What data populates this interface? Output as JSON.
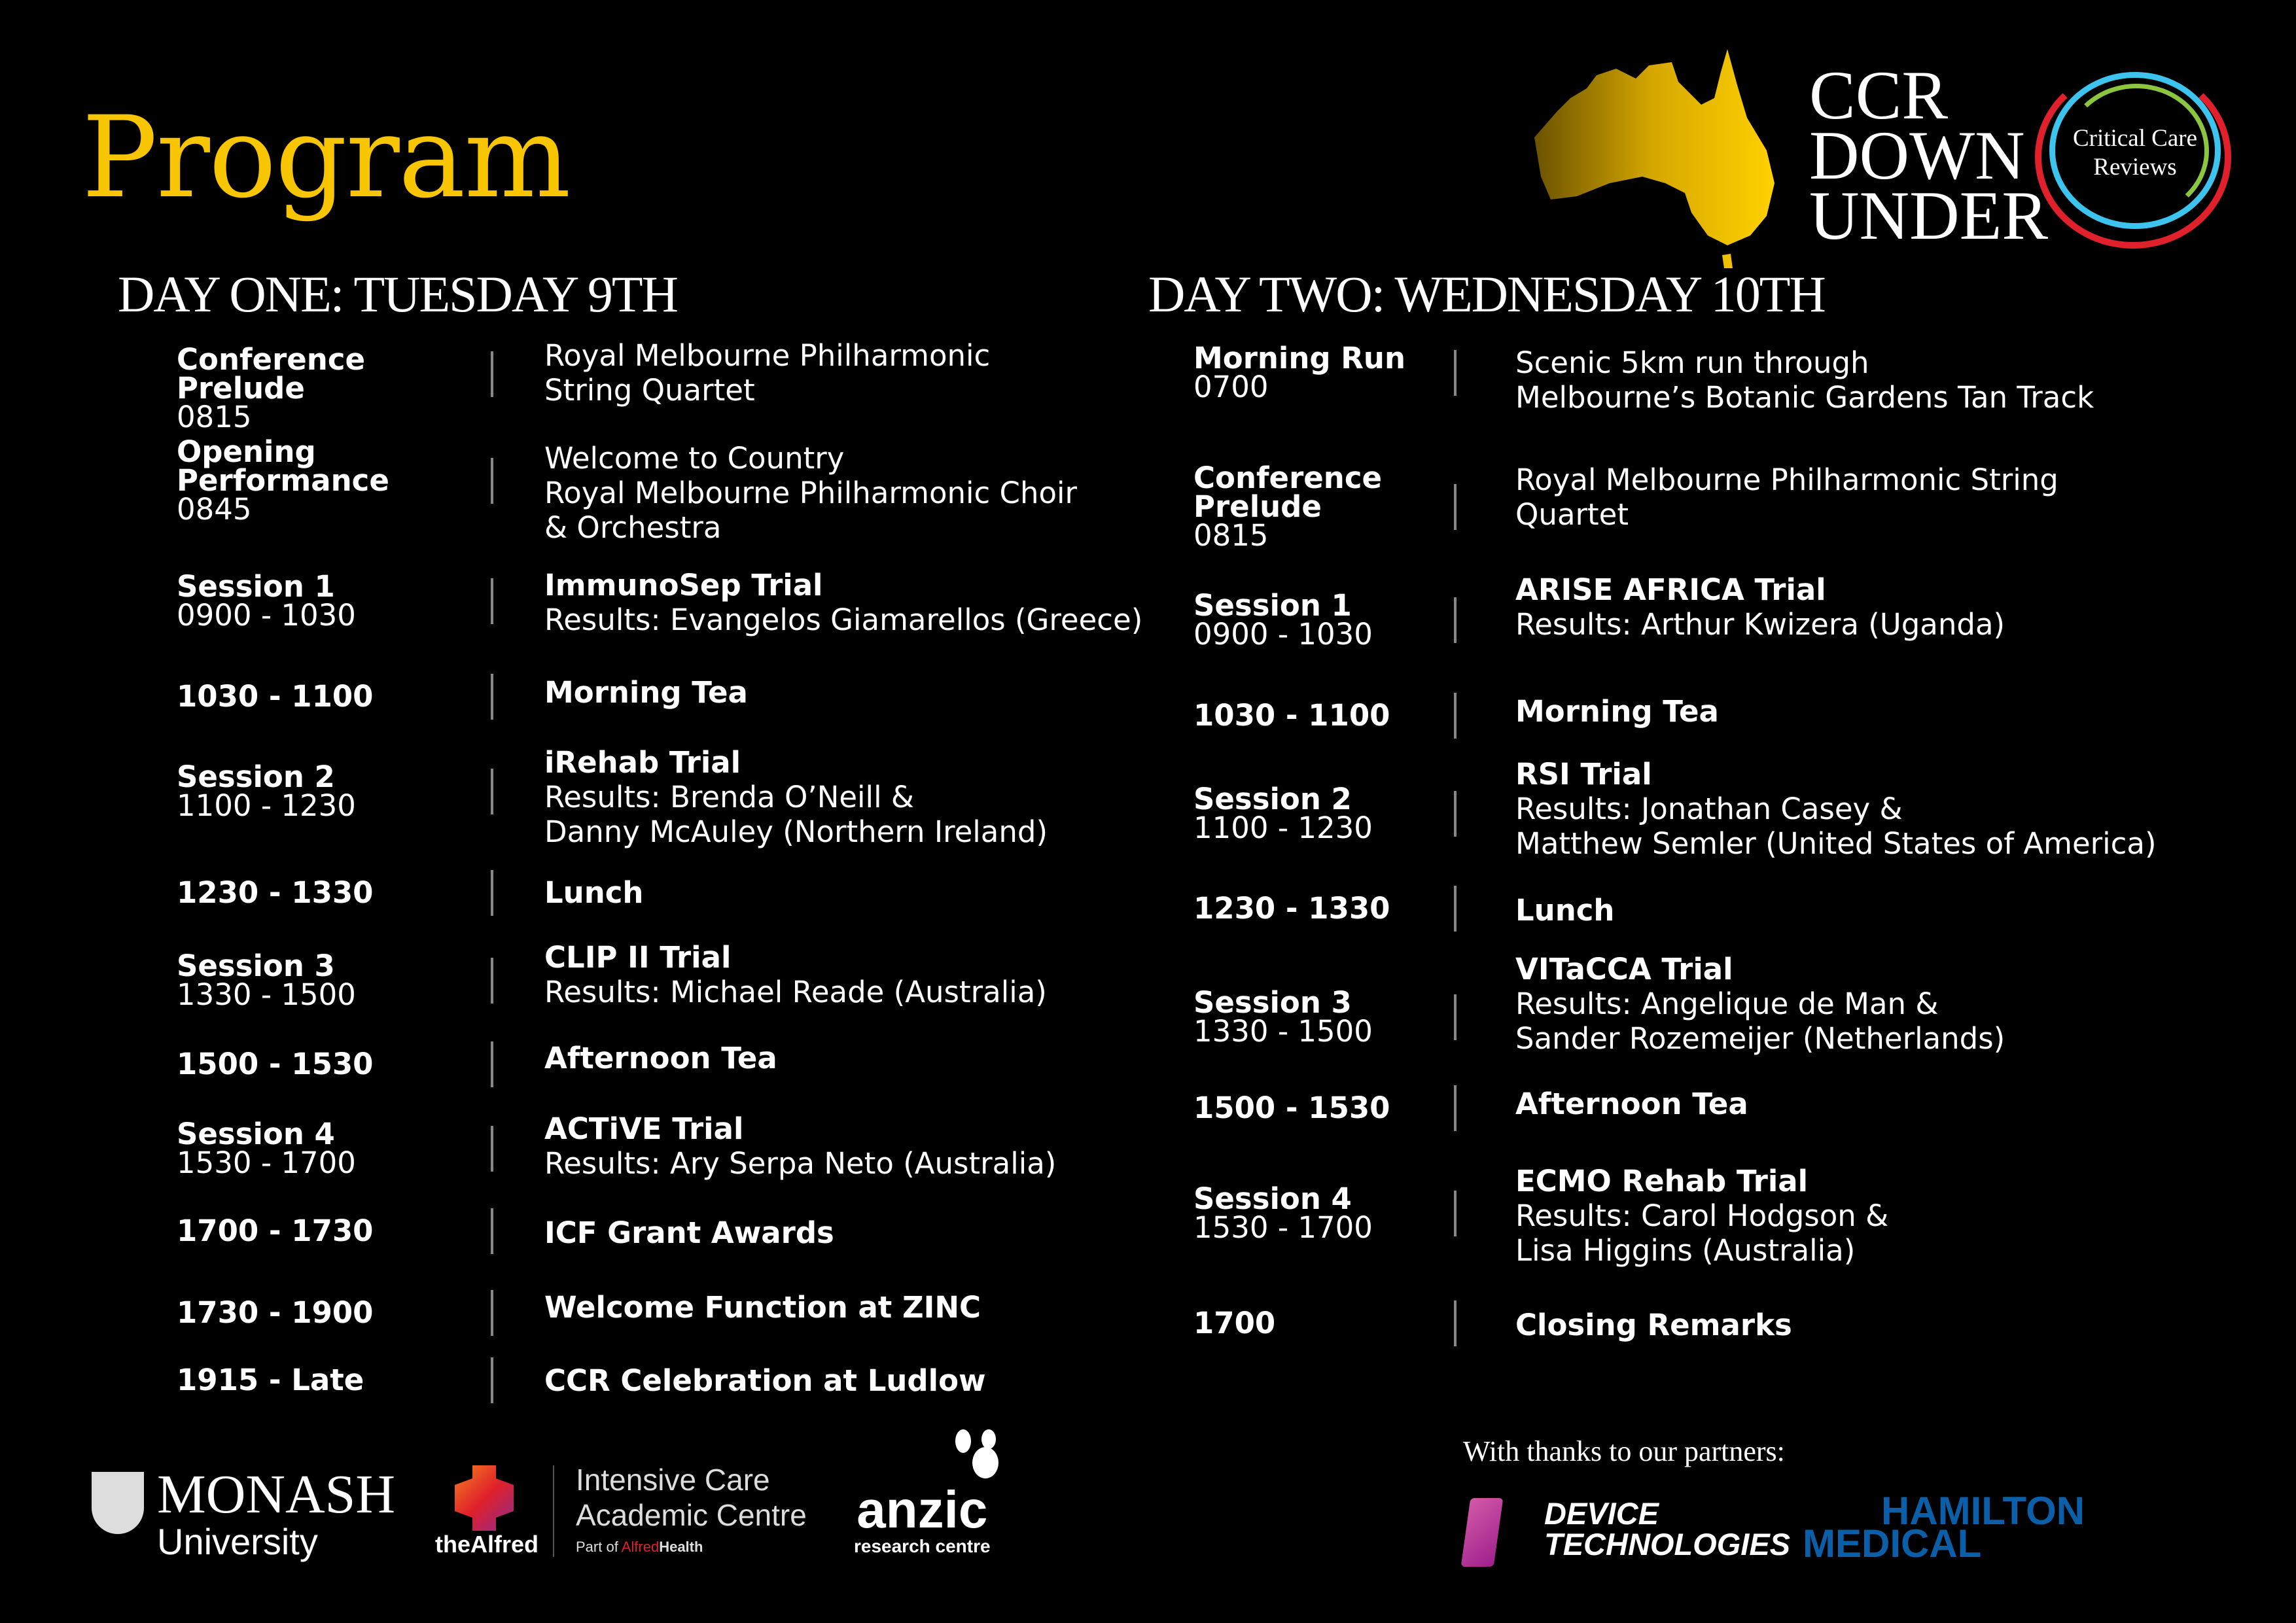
{
  "title": "Program",
  "branding": {
    "ccr": [
      "CCR",
      "DOWN",
      "UNDER"
    ],
    "ccr_reviews": [
      "Critical Care",
      "Reviews"
    ],
    "map_color": "#f5c400",
    "ring_colors": [
      "#e0202a",
      "#3cc3ee",
      "#8cc63f"
    ]
  },
  "day_one": {
    "heading": "DAY ONE: TUESDAY 9TH",
    "rows": [
      {
        "title": "Conference Prelude",
        "time": "0815",
        "heading": "",
        "lines": [
          "Royal Melbourne Philharmonic",
          "String Quartet"
        ]
      },
      {
        "title": "Opening Performance",
        "time": "0845",
        "heading": "",
        "lines": [
          "Welcome to Country",
          "Royal Melbourne Philharmonic Choir",
          "& Orchestra"
        ]
      },
      {
        "title": "Session 1",
        "time": "0900 - 1030",
        "heading": "ImmunoSep Trial",
        "lines": [
          "Results: Evangelos Giamarellos (Greece)"
        ]
      },
      {
        "title": "",
        "time": "1030 - 1100",
        "heading": "Morning Tea",
        "lines": []
      },
      {
        "title": "Session 2",
        "time": "1100 - 1230",
        "heading": "iRehab Trial",
        "lines": [
          "Results: Brenda O’Neill &",
          "Danny McAuley (Northern Ireland)"
        ]
      },
      {
        "title": "",
        "time": "1230 - 1330",
        "heading": "Lunch",
        "lines": []
      },
      {
        "title": "Session 3",
        "time": "1330 - 1500",
        "heading": "CLIP II Trial",
        "lines": [
          "Results: Michael Reade (Australia)"
        ]
      },
      {
        "title": "",
        "time": "1500 - 1530",
        "heading": "Afternoon Tea",
        "lines": []
      },
      {
        "title": "Session 4",
        "time": "1530 - 1700",
        "heading": "ACTiVE Trial",
        "lines": [
          "Results: Ary Serpa Neto (Australia)"
        ]
      },
      {
        "title": "",
        "time": "1700 - 1730",
        "heading": "ICF Grant Awards",
        "lines": []
      },
      {
        "title": "",
        "time": "1730 - 1900",
        "heading": "Welcome Function at ZINC",
        "lines": []
      },
      {
        "title": "",
        "time": "1915 - Late",
        "heading": "CCR Celebration at Ludlow",
        "lines": []
      }
    ]
  },
  "day_two": {
    "heading": "DAY TWO: WEDNESDAY 10TH",
    "rows": [
      {
        "title": "Morning Run",
        "time": "0700",
        "heading": "",
        "lines": [
          "Scenic 5km run through",
          "Melbourne’s Botanic Gardens Tan Track"
        ]
      },
      {
        "title": "Conference Prelude",
        "time": "0815",
        "heading": "",
        "lines": [
          "Royal Melbourne Philharmonic String",
          "Quartet"
        ]
      },
      {
        "title": "Session 1",
        "time": "0900 - 1030",
        "heading": "ARISE AFRICA Trial",
        "lines": [
          "Results: Arthur Kwizera (Uganda)"
        ]
      },
      {
        "title": "",
        "time": "1030 - 1100",
        "heading": "Morning Tea",
        "lines": []
      },
      {
        "title": "Session 2",
        "time": "1100 - 1230",
        "heading": "RSI Trial",
        "lines": [
          "Results: Jonathan Casey &",
          "Matthew Semler (United States of America)"
        ]
      },
      {
        "title": "",
        "time": "1230 - 1330",
        "heading": "Lunch",
        "lines": []
      },
      {
        "title": "Session 3",
        "time": "1330 - 1500",
        "heading": "VITaCCA Trial",
        "lines": [
          "Results: Angelique de Man &",
          "Sander Rozemeijer (Netherlands)"
        ]
      },
      {
        "title": "",
        "time": "1500 - 1530",
        "heading": "Afternoon Tea",
        "lines": []
      },
      {
        "title": "Session 4",
        "time": "1530 - 1700",
        "heading": "ECMO Rehab Trial",
        "lines": [
          "Results: Carol Hodgson &",
          "Lisa Higgins (Australia)"
        ]
      },
      {
        "title": "",
        "time": "1700",
        "heading": "Closing Remarks",
        "lines": []
      }
    ]
  },
  "partners": {
    "thanks": "With thanks to our partners:",
    "device": [
      "DEVICE",
      "TECHNOLOGIES"
    ],
    "hamilton": [
      "HAMILTON",
      "MEDICAL"
    ],
    "hamilton_color": "#0a5fa8",
    "device_color": "#b02a8f"
  },
  "footer_logos": {
    "monash": [
      "MONASH",
      "University"
    ],
    "alfred": "theAlfred",
    "icac": [
      "Intensive Care",
      "Academic Centre"
    ],
    "icac_part": "Part of ",
    "icac_alfred": "Alfred",
    "icac_health": "Health",
    "anzic": [
      "anzic",
      "research centre"
    ]
  }
}
